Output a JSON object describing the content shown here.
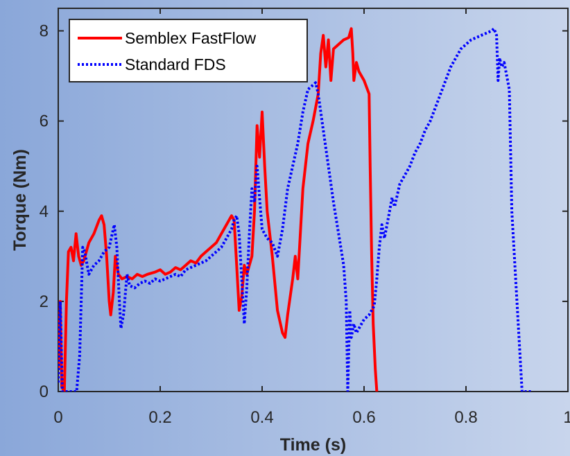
{
  "chart_data": {
    "type": "line",
    "xlabel": "Time (s)",
    "ylabel": "Torque (Nm)",
    "xlim": [
      0,
      1
    ],
    "ylim": [
      0,
      8.5
    ],
    "xticks": [
      0,
      0.2,
      0.4,
      0.6,
      0.8,
      1
    ],
    "xtick_labels": [
      "0",
      "0.2",
      "0.4",
      "0.6",
      "0.8",
      "1"
    ],
    "yticks": [
      0,
      2,
      4,
      6,
      8
    ],
    "ytick_labels": [
      "0",
      "2",
      "4",
      "6",
      "8"
    ],
    "legend_position": "top-left",
    "grid": false,
    "series": [
      {
        "name": "Semblex FastFlow",
        "color": "#ff0000",
        "style": "solid",
        "points": [
          [
            0,
            0.5
          ],
          [
            0.004,
            2.0
          ],
          [
            0.007,
            0.1
          ],
          [
            0.012,
            0
          ],
          [
            0.016,
            2.0
          ],
          [
            0.02,
            3.1
          ],
          [
            0.025,
            3.2
          ],
          [
            0.03,
            2.9
          ],
          [
            0.035,
            3.5
          ],
          [
            0.04,
            3.0
          ],
          [
            0.045,
            2.8
          ],
          [
            0.05,
            2.9
          ],
          [
            0.06,
            3.3
          ],
          [
            0.07,
            3.5
          ],
          [
            0.08,
            3.8
          ],
          [
            0.085,
            3.9
          ],
          [
            0.09,
            3.7
          ],
          [
            0.095,
            3.0
          ],
          [
            0.1,
            2.0
          ],
          [
            0.103,
            1.7
          ],
          [
            0.108,
            2.2
          ],
          [
            0.112,
            3.0
          ],
          [
            0.118,
            2.6
          ],
          [
            0.125,
            2.5
          ],
          [
            0.135,
            2.55
          ],
          [
            0.145,
            2.5
          ],
          [
            0.155,
            2.6
          ],
          [
            0.165,
            2.55
          ],
          [
            0.175,
            2.6
          ],
          [
            0.19,
            2.65
          ],
          [
            0.2,
            2.7
          ],
          [
            0.21,
            2.6
          ],
          [
            0.22,
            2.65
          ],
          [
            0.23,
            2.75
          ],
          [
            0.24,
            2.7
          ],
          [
            0.25,
            2.8
          ],
          [
            0.26,
            2.9
          ],
          [
            0.27,
            2.85
          ],
          [
            0.28,
            3.0
          ],
          [
            0.29,
            3.1
          ],
          [
            0.3,
            3.2
          ],
          [
            0.31,
            3.3
          ],
          [
            0.32,
            3.5
          ],
          [
            0.33,
            3.7
          ],
          [
            0.34,
            3.9
          ],
          [
            0.345,
            3.8
          ],
          [
            0.35,
            2.8
          ],
          [
            0.355,
            1.8
          ],
          [
            0.36,
            2.1
          ],
          [
            0.365,
            2.8
          ],
          [
            0.37,
            2.6
          ],
          [
            0.38,
            3.0
          ],
          [
            0.385,
            4.0
          ],
          [
            0.39,
            5.9
          ],
          [
            0.395,
            5.2
          ],
          [
            0.4,
            6.2
          ],
          [
            0.405,
            5.0
          ],
          [
            0.41,
            4.0
          ],
          [
            0.42,
            3.0
          ],
          [
            0.43,
            1.8
          ],
          [
            0.44,
            1.3
          ],
          [
            0.445,
            1.2
          ],
          [
            0.45,
            1.7
          ],
          [
            0.46,
            2.5
          ],
          [
            0.465,
            3.0
          ],
          [
            0.47,
            2.5
          ],
          [
            0.48,
            4.5
          ],
          [
            0.49,
            5.5
          ],
          [
            0.5,
            6.0
          ],
          [
            0.51,
            6.6
          ],
          [
            0.515,
            7.5
          ],
          [
            0.52,
            7.9
          ],
          [
            0.525,
            7.2
          ],
          [
            0.53,
            7.8
          ],
          [
            0.535,
            6.9
          ],
          [
            0.54,
            7.6
          ],
          [
            0.55,
            7.7
          ],
          [
            0.56,
            7.8
          ],
          [
            0.57,
            7.85
          ],
          [
            0.575,
            8.05
          ],
          [
            0.578,
            7.5
          ],
          [
            0.58,
            6.9
          ],
          [
            0.585,
            7.3
          ],
          [
            0.59,
            7.1
          ],
          [
            0.6,
            6.9
          ],
          [
            0.61,
            6.6
          ],
          [
            0.612,
            5.0
          ],
          [
            0.615,
            3.0
          ],
          [
            0.618,
            1.5
          ],
          [
            0.622,
            0.5
          ],
          [
            0.625,
            0
          ]
        ]
      },
      {
        "name": "Standard FDS",
        "color": "#0000ff",
        "style": "dotted",
        "points": [
          [
            0,
            0.2
          ],
          [
            0.004,
            2.0
          ],
          [
            0.008,
            0
          ],
          [
            0.036,
            0
          ],
          [
            0.042,
            0.8
          ],
          [
            0.048,
            3.2
          ],
          [
            0.052,
            3.1
          ],
          [
            0.06,
            2.6
          ],
          [
            0.07,
            2.8
          ],
          [
            0.08,
            2.9
          ],
          [
            0.09,
            3.1
          ],
          [
            0.1,
            3.2
          ],
          [
            0.11,
            3.7
          ],
          [
            0.115,
            3.2
          ],
          [
            0.12,
            2.0
          ],
          [
            0.123,
            1.4
          ],
          [
            0.128,
            1.7
          ],
          [
            0.135,
            2.6
          ],
          [
            0.14,
            2.35
          ],
          [
            0.15,
            2.3
          ],
          [
            0.16,
            2.4
          ],
          [
            0.17,
            2.45
          ],
          [
            0.18,
            2.4
          ],
          [
            0.19,
            2.5
          ],
          [
            0.2,
            2.45
          ],
          [
            0.21,
            2.5
          ],
          [
            0.22,
            2.55
          ],
          [
            0.23,
            2.6
          ],
          [
            0.24,
            2.55
          ],
          [
            0.25,
            2.7
          ],
          [
            0.26,
            2.75
          ],
          [
            0.27,
            2.8
          ],
          [
            0.28,
            2.85
          ],
          [
            0.29,
            2.9
          ],
          [
            0.3,
            3.0
          ],
          [
            0.31,
            3.1
          ],
          [
            0.32,
            3.2
          ],
          [
            0.33,
            3.4
          ],
          [
            0.34,
            3.6
          ],
          [
            0.345,
            3.8
          ],
          [
            0.35,
            3.9
          ],
          [
            0.355,
            3.5
          ],
          [
            0.36,
            2.5
          ],
          [
            0.365,
            1.5
          ],
          [
            0.37,
            2.3
          ],
          [
            0.375,
            3.5
          ],
          [
            0.38,
            4.5
          ],
          [
            0.385,
            4.2
          ],
          [
            0.39,
            5.0
          ],
          [
            0.395,
            4.3
          ],
          [
            0.4,
            3.6
          ],
          [
            0.41,
            3.4
          ],
          [
            0.42,
            3.3
          ],
          [
            0.43,
            3.0
          ],
          [
            0.44,
            3.6
          ],
          [
            0.45,
            4.5
          ],
          [
            0.46,
            5.0
          ],
          [
            0.47,
            5.5
          ],
          [
            0.48,
            6.2
          ],
          [
            0.49,
            6.7
          ],
          [
            0.5,
            6.8
          ],
          [
            0.505,
            6.85
          ],
          [
            0.51,
            6.6
          ],
          [
            0.52,
            5.8
          ],
          [
            0.53,
            5.0
          ],
          [
            0.54,
            4.2
          ],
          [
            0.55,
            3.5
          ],
          [
            0.56,
            2.8
          ],
          [
            0.565,
            2.0
          ],
          [
            0.568,
            0
          ],
          [
            0.572,
            1.8
          ],
          [
            0.575,
            1.2
          ],
          [
            0.58,
            1.5
          ],
          [
            0.585,
            1.3
          ],
          [
            0.59,
            1.4
          ],
          [
            0.6,
            1.6
          ],
          [
            0.61,
            1.7
          ],
          [
            0.62,
            1.9
          ],
          [
            0.625,
            2.5
          ],
          [
            0.63,
            3.2
          ],
          [
            0.635,
            3.7
          ],
          [
            0.64,
            3.4
          ],
          [
            0.65,
            4.0
          ],
          [
            0.655,
            4.3
          ],
          [
            0.66,
            4.1
          ],
          [
            0.67,
            4.6
          ],
          [
            0.68,
            4.8
          ],
          [
            0.69,
            5.0
          ],
          [
            0.7,
            5.3
          ],
          [
            0.71,
            5.5
          ],
          [
            0.72,
            5.8
          ],
          [
            0.73,
            6.0
          ],
          [
            0.74,
            6.3
          ],
          [
            0.75,
            6.6
          ],
          [
            0.76,
            6.9
          ],
          [
            0.77,
            7.2
          ],
          [
            0.78,
            7.4
          ],
          [
            0.79,
            7.6
          ],
          [
            0.8,
            7.7
          ],
          [
            0.81,
            7.8
          ],
          [
            0.82,
            7.85
          ],
          [
            0.83,
            7.9
          ],
          [
            0.84,
            7.95
          ],
          [
            0.85,
            8.0
          ],
          [
            0.855,
            8.05
          ],
          [
            0.86,
            7.9
          ],
          [
            0.863,
            6.9
          ],
          [
            0.866,
            7.4
          ],
          [
            0.87,
            7.2
          ],
          [
            0.875,
            7.3
          ],
          [
            0.88,
            7.0
          ],
          [
            0.885,
            6.7
          ],
          [
            0.89,
            4.0
          ],
          [
            0.895,
            3.0
          ],
          [
            0.9,
            2.0
          ],
          [
            0.905,
            1.0
          ],
          [
            0.91,
            0
          ],
          [
            0.93,
            0
          ]
        ]
      }
    ]
  }
}
